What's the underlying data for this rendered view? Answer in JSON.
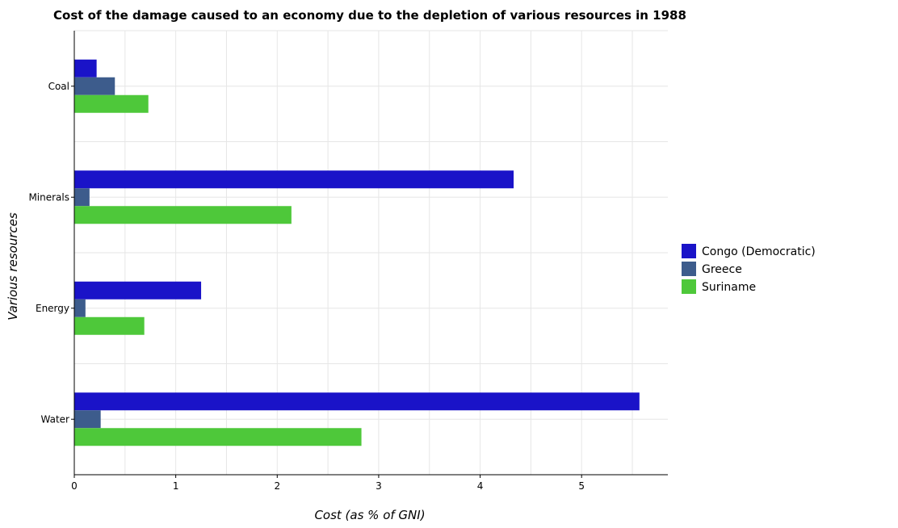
{
  "chart_data": {
    "type": "bar",
    "orientation": "horizontal",
    "title": "Cost of the damage caused to an economy due to the depletion of various resources in 1988",
    "xlabel": "Cost (as % of GNI)",
    "ylabel": "Various resources",
    "categories": [
      "Coal",
      "Minerals",
      "Energy",
      "Water"
    ],
    "xlim": [
      0,
      5.85
    ],
    "xticks": [
      0,
      1,
      2,
      3,
      4,
      5
    ],
    "xtick_labels": [
      "0",
      "1",
      "2",
      "3",
      "4",
      "5"
    ],
    "grid": true,
    "legend_position": "right",
    "series": [
      {
        "name": "Congo (Democratic)",
        "color": "#1a13c8",
        "values": [
          0.22,
          4.33,
          1.25,
          5.57
        ]
      },
      {
        "name": "Greece",
        "color": "#3d5c8c",
        "values": [
          0.4,
          0.15,
          0.11,
          0.26
        ]
      },
      {
        "name": "Suriname",
        "color": "#4ec83a",
        "values": [
          0.73,
          2.14,
          0.69,
          2.83
        ]
      }
    ]
  }
}
